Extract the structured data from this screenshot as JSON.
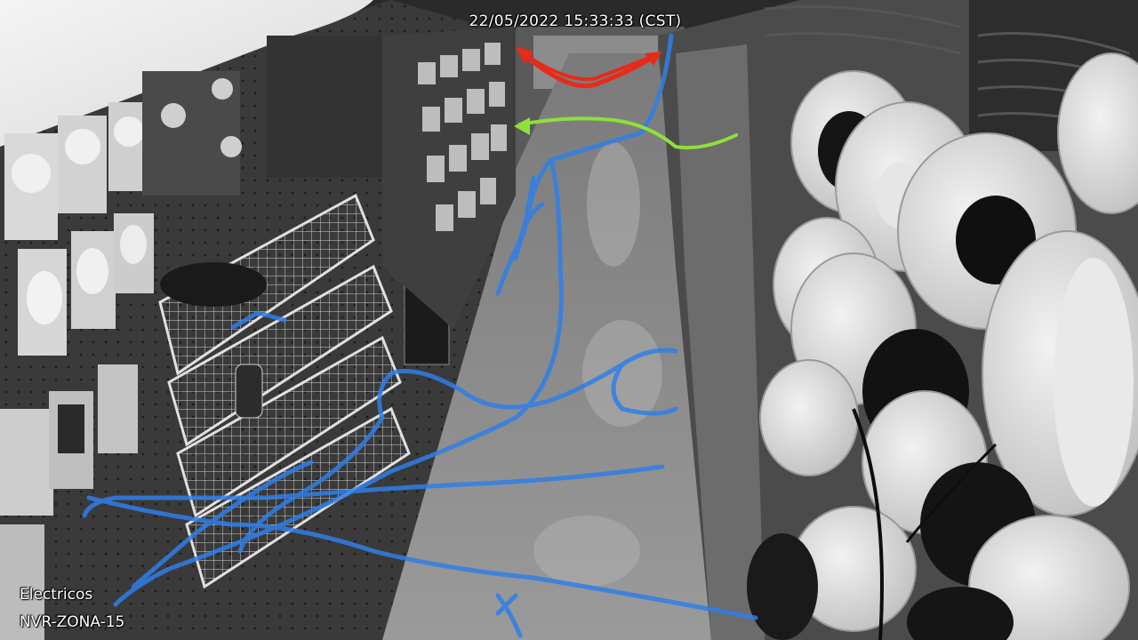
{
  "osd": {
    "timestamp": "22/05/2022 15:33:33 (CST)",
    "zone_name": "Electricos",
    "camera_id": "NVR-ZONA-15"
  },
  "overlay": {
    "path_heat_color": "#2f7fe8",
    "entry_arrow_color": "#8ee03a",
    "turn_arrow_color": "#e82a1a"
  }
}
